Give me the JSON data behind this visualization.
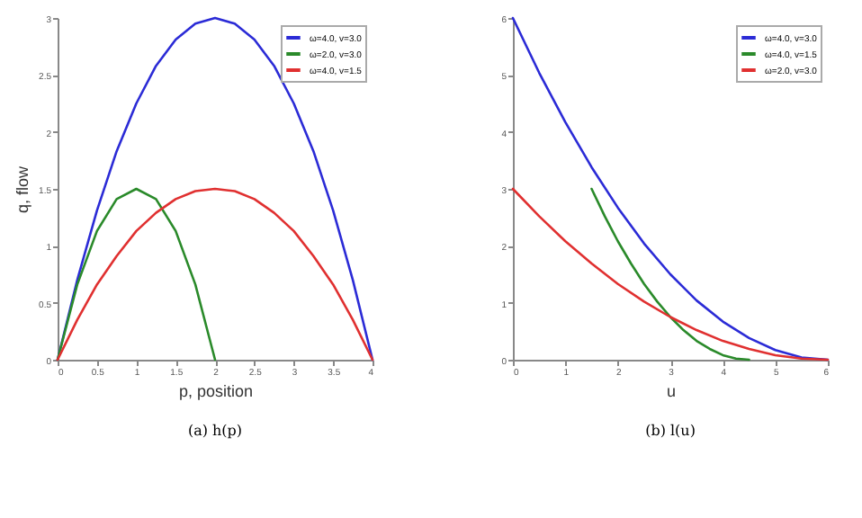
{
  "chart_data": [
    {
      "type": "line",
      "title": "(a) h(p)",
      "xlabel": "p, position",
      "ylabel": "q, flow",
      "x": [
        0,
        0.25,
        0.5,
        0.75,
        1,
        1.25,
        1.5,
        1.75,
        2,
        2.25,
        2.5,
        2.75,
        3,
        3.25,
        3.5,
        3.75,
        4
      ],
      "xlim": [
        0,
        4
      ],
      "xticks": [
        0,
        0.5,
        1,
        1.5,
        2,
        2.5,
        3,
        3.5,
        4
      ],
      "ylim": [
        0,
        3
      ],
      "yticks": [
        0,
        0.5,
        1,
        1.5,
        2,
        2.5,
        3
      ],
      "grid": false,
      "legend": "top right",
      "line_style": "solid",
      "marker": "none",
      "series": [
        {
          "name": "ω=4.0, v=3.0",
          "color": "#2b2bd6",
          "values": [
            0,
            0.7,
            1.31,
            1.83,
            2.25,
            2.58,
            2.81,
            2.95,
            3,
            2.95,
            2.81,
            2.58,
            2.25,
            1.83,
            1.31,
            0.7,
            0
          ]
        },
        {
          "name": "ω=2.0, v=3.0",
          "color": "#2a8a2a",
          "x": [
            0,
            0.25,
            0.5,
            0.75,
            1,
            1.25,
            1.5,
            1.75,
            2
          ],
          "values": [
            0,
            0.66,
            1.13,
            1.41,
            1.5,
            1.41,
            1.13,
            0.66,
            0
          ]
        },
        {
          "name": "ω=4.0, v=1.5",
          "color": "#e03030",
          "values": [
            0,
            0.35,
            0.66,
            0.91,
            1.13,
            1.29,
            1.41,
            1.48,
            1.5,
            1.48,
            1.41,
            1.29,
            1.13,
            0.91,
            0.66,
            0.35,
            0
          ]
        }
      ]
    },
    {
      "type": "line",
      "title": "(b) l(u)",
      "xlabel": "u",
      "x": [
        0,
        0.5,
        1,
        1.5,
        2,
        2.5,
        3,
        3.5,
        4,
        4.5,
        5,
        5.5,
        6
      ],
      "xlim": [
        0,
        6
      ],
      "xticks": [
        0,
        1,
        2,
        3,
        4,
        5,
        6
      ],
      "ylim": [
        0,
        6
      ],
      "yticks": [
        0,
        1,
        2,
        3,
        4,
        5,
        6
      ],
      "grid": false,
      "legend": "top right",
      "line_style": "solid",
      "marker": "none",
      "series": [
        {
          "name": "ω=4.0, v=3.0",
          "color": "#2b2bd6",
          "values": [
            6,
            5.04,
            4.17,
            3.38,
            2.67,
            2.04,
            1.5,
            1.04,
            0.67,
            0.38,
            0.17,
            0.04,
            0
          ]
        },
        {
          "name": "ω=4.0, v=1.5",
          "color": "#2a8a2a",
          "x": [
            1.5,
            1.75,
            2,
            2.25,
            2.5,
            2.75,
            3,
            3.25,
            3.5,
            3.75,
            4,
            4.25,
            4.5
          ],
          "values": [
            3,
            2.52,
            2.08,
            1.69,
            1.33,
            1.02,
            0.75,
            0.52,
            0.33,
            0.19,
            0.08,
            0.02,
            0
          ]
        },
        {
          "name": "ω=2.0, v=3.0",
          "color": "#e03030",
          "values": [
            3,
            2.52,
            2.08,
            1.69,
            1.33,
            1.02,
            0.75,
            0.52,
            0.33,
            0.19,
            0.08,
            0.02,
            0
          ]
        }
      ]
    }
  ]
}
